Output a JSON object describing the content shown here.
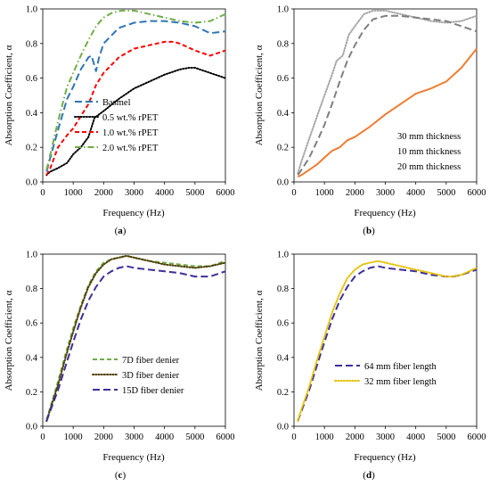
{
  "chart_data": [
    {
      "type": "line",
      "panel_label": "a",
      "xlabel": "Frequency (Hz)",
      "ylabel": "Absorption Coefficient, α",
      "xlim": [
        0,
        6000
      ],
      "ylim": [
        0,
        1.0
      ],
      "x_ticks": [
        "0",
        "1000",
        "2000",
        "3000",
        "4000",
        "5000",
        "6000"
      ],
      "y_ticks": [
        "0.0",
        "0.2",
        "0.4",
        "0.6",
        "0.8",
        "1.0"
      ],
      "legend_position": "bottom-right",
      "series": [
        {
          "name": "Basmel",
          "color": "#2e75b6",
          "dash": "long-dash",
          "x": [
            125,
            250,
            500,
            800,
            1000,
            1250,
            1500,
            1600,
            1750,
            1850,
            2000,
            2500,
            3000,
            3500,
            4000,
            4500,
            5000,
            5500,
            6000
          ],
          "y": [
            0.06,
            0.14,
            0.3,
            0.48,
            0.55,
            0.65,
            0.72,
            0.73,
            0.64,
            0.72,
            0.8,
            0.89,
            0.92,
            0.93,
            0.93,
            0.92,
            0.9,
            0.86,
            0.87
          ]
        },
        {
          "name": "0.5 wt.% rPET",
          "color": "#000000",
          "dash": "dotted",
          "x": [
            125,
            250,
            500,
            800,
            1000,
            1250,
            1500,
            1700,
            2000,
            2500,
            3000,
            3500,
            4000,
            4500,
            4800,
            5000,
            5500,
            6000
          ],
          "y": [
            0.04,
            0.06,
            0.08,
            0.11,
            0.16,
            0.2,
            0.26,
            0.37,
            0.41,
            0.48,
            0.54,
            0.58,
            0.62,
            0.65,
            0.66,
            0.66,
            0.63,
            0.6
          ]
        },
        {
          "name": "1.0 wt.% rPET",
          "color": "#ff0000",
          "dash": "dashed",
          "x": [
            125,
            250,
            500,
            800,
            1000,
            1250,
            1500,
            1750,
            2000,
            2500,
            3000,
            3500,
            4000,
            4300,
            4500,
            5000,
            5500,
            6000
          ],
          "y": [
            0.04,
            0.08,
            0.2,
            0.27,
            0.31,
            0.38,
            0.45,
            0.56,
            0.63,
            0.72,
            0.77,
            0.79,
            0.81,
            0.81,
            0.8,
            0.76,
            0.73,
            0.76
          ]
        },
        {
          "name": "2.0 wt.% rPET",
          "color": "#70ad47",
          "dash": "dash-dot",
          "x": [
            125,
            250,
            500,
            800,
            1000,
            1250,
            1500,
            1750,
            2000,
            2300,
            2600,
            3000,
            3500,
            4000,
            4500,
            5000,
            5500,
            6000
          ],
          "y": [
            0.07,
            0.16,
            0.35,
            0.55,
            0.63,
            0.73,
            0.82,
            0.9,
            0.95,
            0.98,
            0.99,
            0.99,
            0.97,
            0.95,
            0.93,
            0.92,
            0.93,
            0.97
          ]
        }
      ]
    },
    {
      "type": "line",
      "panel_label": "b",
      "xlabel": "Frequency (Hz)",
      "ylabel": "Absorption Coefficient, α",
      "xlim": [
        0,
        6000
      ],
      "ylim": [
        0,
        1.0
      ],
      "x_ticks": [
        "0",
        "1000",
        "2000",
        "3000",
        "4000",
        "5000",
        "6000"
      ],
      "y_ticks": [
        "0.0",
        "0.2",
        "0.4",
        "0.6",
        "0.8",
        "1.0"
      ],
      "legend_position": "bottom-right",
      "series": [
        {
          "name": "30 mm thickness",
          "color": "#a6a6a6",
          "dash": "dotted",
          "x": [
            125,
            250,
            500,
            800,
            1000,
            1250,
            1400,
            1600,
            1800,
            2000,
            2300,
            2600,
            3000,
            3500,
            4000,
            4500,
            5000,
            5500,
            6000
          ],
          "y": [
            0.05,
            0.12,
            0.25,
            0.4,
            0.5,
            0.62,
            0.7,
            0.73,
            0.85,
            0.9,
            0.97,
            0.99,
            0.99,
            0.97,
            0.95,
            0.93,
            0.92,
            0.93,
            0.96
          ]
        },
        {
          "name": "10 mm thickness",
          "color": "#ed7d31",
          "dash": "solid",
          "x": [
            125,
            250,
            500,
            750,
            1000,
            1250,
            1500,
            1750,
            2000,
            2500,
            3000,
            3500,
            4000,
            4500,
            5000,
            5500,
            6000
          ],
          "y": [
            0.03,
            0.04,
            0.07,
            0.1,
            0.14,
            0.18,
            0.2,
            0.24,
            0.26,
            0.32,
            0.39,
            0.45,
            0.51,
            0.54,
            0.58,
            0.66,
            0.77
          ]
        },
        {
          "name": "20 mm thickness",
          "color": "#7f7f7f",
          "dash": "long-dash",
          "x": [
            125,
            250,
            500,
            800,
            1000,
            1250,
            1500,
            1750,
            2000,
            2300,
            2600,
            3000,
            3500,
            4000,
            4500,
            5000,
            5500,
            6000
          ],
          "y": [
            0.04,
            0.07,
            0.14,
            0.25,
            0.33,
            0.45,
            0.58,
            0.7,
            0.79,
            0.88,
            0.94,
            0.96,
            0.96,
            0.95,
            0.94,
            0.93,
            0.9,
            0.87
          ]
        }
      ]
    },
    {
      "type": "line",
      "panel_label": "c",
      "xlabel": "Frequency (Hz)",
      "ylabel": "Absorption Coefficient, α",
      "xlim": [
        0,
        6000
      ],
      "ylim": [
        0,
        1.0
      ],
      "x_ticks": [
        "0",
        "1000",
        "2000",
        "3000",
        "4000",
        "5000",
        "6000"
      ],
      "y_ticks": [
        "0.0",
        "0.2",
        "0.4",
        "0.6",
        "0.8",
        "1.0"
      ],
      "legend_position": "bottom-center",
      "series": [
        {
          "name": "7D fiber denier",
          "color": "#70ad47",
          "dash": "dashed",
          "x": [
            125,
            250,
            500,
            750,
            1000,
            1250,
            1500,
            1750,
            2000,
            2250,
            2500,
            2750,
            3000,
            3500,
            4000,
            4500,
            5000,
            5500,
            6000
          ],
          "y": [
            0.04,
            0.11,
            0.26,
            0.42,
            0.57,
            0.7,
            0.82,
            0.9,
            0.95,
            0.97,
            0.98,
            0.99,
            0.98,
            0.96,
            0.95,
            0.94,
            0.93,
            0.93,
            0.96
          ]
        },
        {
          "name": "3D fiber denier",
          "color": "#4d3b00",
          "dash": "dotted",
          "x": [
            125,
            250,
            500,
            750,
            1000,
            1250,
            1500,
            1750,
            2000,
            2250,
            2500,
            2750,
            3000,
            3500,
            4000,
            4500,
            5000,
            5500,
            6000
          ],
          "y": [
            0.03,
            0.1,
            0.24,
            0.4,
            0.55,
            0.69,
            0.81,
            0.89,
            0.94,
            0.97,
            0.98,
            0.99,
            0.98,
            0.96,
            0.94,
            0.93,
            0.92,
            0.93,
            0.95
          ]
        },
        {
          "name": "15D fiber denier",
          "color": "#3d2e9c",
          "dash": "long-dash",
          "x": [
            125,
            250,
            500,
            750,
            1000,
            1250,
            1500,
            1750,
            2000,
            2250,
            2500,
            2750,
            3000,
            3500,
            4000,
            4500,
            5000,
            5500,
            6000
          ],
          "y": [
            0.03,
            0.09,
            0.21,
            0.35,
            0.49,
            0.62,
            0.73,
            0.81,
            0.87,
            0.9,
            0.92,
            0.93,
            0.92,
            0.91,
            0.9,
            0.89,
            0.87,
            0.87,
            0.9
          ]
        }
      ]
    },
    {
      "type": "line",
      "panel_label": "d",
      "xlabel": "Frequency (Hz)",
      "ylabel": "Absorption Coefficient, α",
      "xlim": [
        0,
        6000
      ],
      "ylim": [
        0,
        1.0
      ],
      "x_ticks": [
        "0",
        "1000",
        "2000",
        "3000",
        "4000",
        "5000",
        "6000"
      ],
      "y_ticks": [
        "0.0",
        "0.2",
        "0.4",
        "0.6",
        "0.8",
        "1.0"
      ],
      "legend_position": "bottom-center",
      "series": [
        {
          "name": "64 mm fiber length",
          "color": "#3d2e9c",
          "dash": "long-dash",
          "x": [
            125,
            250,
            500,
            750,
            1000,
            1250,
            1500,
            1750,
            2000,
            2250,
            2500,
            2750,
            3000,
            3500,
            4000,
            4500,
            5000,
            5250,
            5500,
            6000
          ],
          "y": [
            0.03,
            0.09,
            0.21,
            0.35,
            0.49,
            0.62,
            0.73,
            0.81,
            0.87,
            0.9,
            0.92,
            0.93,
            0.92,
            0.91,
            0.9,
            0.88,
            0.87,
            0.87,
            0.88,
            0.91
          ]
        },
        {
          "name": "32 mm fiber length",
          "color": "#e5c100",
          "dash": "dotted",
          "x": [
            125,
            250,
            500,
            750,
            1000,
            1250,
            1500,
            1750,
            2000,
            2250,
            2500,
            2750,
            3000,
            3500,
            4000,
            4500,
            5000,
            5250,
            5500,
            6000
          ],
          "y": [
            0.03,
            0.1,
            0.23,
            0.38,
            0.52,
            0.66,
            0.77,
            0.86,
            0.91,
            0.94,
            0.95,
            0.96,
            0.95,
            0.93,
            0.91,
            0.89,
            0.87,
            0.87,
            0.88,
            0.92
          ]
        }
      ]
    }
  ]
}
